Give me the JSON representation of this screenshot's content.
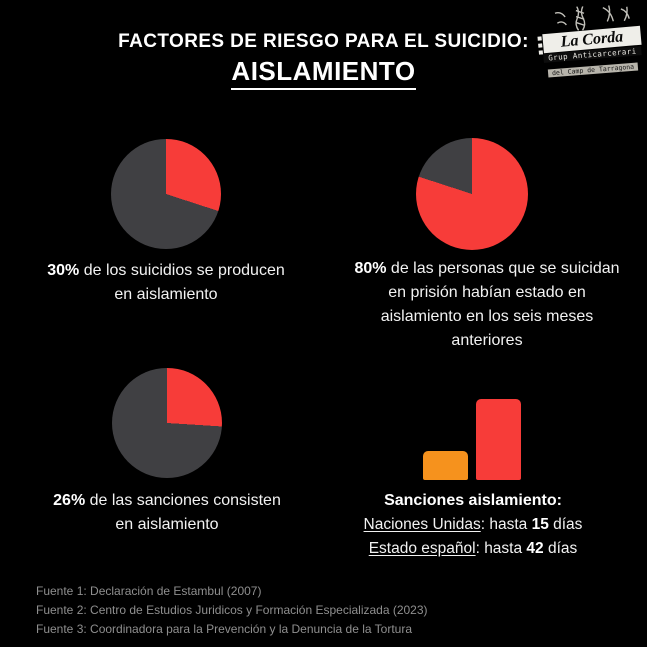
{
  "title": {
    "line1": "FACTORES DE RIESGO PARA EL SUICIDIO:",
    "line2": "AISLAMIENTO"
  },
  "logo": {
    "title": "La Corda",
    "subtitle1": "Grup Anticarcerari",
    "subtitle2": "del Camp de Tarragona"
  },
  "colors": {
    "background": "#000000",
    "red": "#f73c39",
    "dark_gray": "#404043",
    "orange": "#f6921d",
    "text": "#f2f2f2",
    "muted": "#8f8f8f"
  },
  "chart_data": [
    {
      "type": "pie",
      "values": [
        30,
        70
      ],
      "labels": [
        "suicidios en aislamiento",
        "resto"
      ],
      "colors": [
        "#f73c39",
        "#404043"
      ],
      "caption_bold": "30%",
      "caption_rest": " de los suicidios se producen\nen aislamiento"
    },
    {
      "type": "pie",
      "values": [
        80,
        20
      ],
      "labels": [
        "habían estado en aislamiento",
        "resto"
      ],
      "colors": [
        "#f73c39",
        "#404043"
      ],
      "caption_bold": "80%",
      "caption_rest": " de las personas que se suicidan\nen prisión habían estado en\naislamiento en los seis meses\nanteriores"
    },
    {
      "type": "pie",
      "values": [
        26,
        74
      ],
      "labels": [
        "sanciones de aislamiento",
        "resto"
      ],
      "colors": [
        "#f73c39",
        "#404043"
      ],
      "caption_bold": "26%",
      "caption_rest": " de las sanciones consisten\nen aislamiento"
    },
    {
      "type": "bar",
      "title": "Sanciones aislamiento:",
      "categories": [
        "Naciones Unidas",
        "Estado español"
      ],
      "values": [
        15,
        42
      ],
      "unit": "días",
      "colors": [
        "#f6921d",
        "#f73c39"
      ],
      "ylim": [
        0,
        42
      ],
      "lines": [
        {
          "u": "Naciones Unidas",
          "mid": ": hasta ",
          "b": "15",
          "end": " días"
        },
        {
          "u": "Estado español",
          "mid": ": hasta ",
          "b": "42",
          "end": " días"
        }
      ]
    }
  ],
  "footer": {
    "lines": [
      "Fuente 1: Declaración de Estambul (2007)",
      "Fuente 2: Centro de Estudios Juridicos y Formación Especializada (2023)",
      "Fuente 3: Coordinadora para la Prevención y la Denuncia de la Tortura"
    ]
  }
}
